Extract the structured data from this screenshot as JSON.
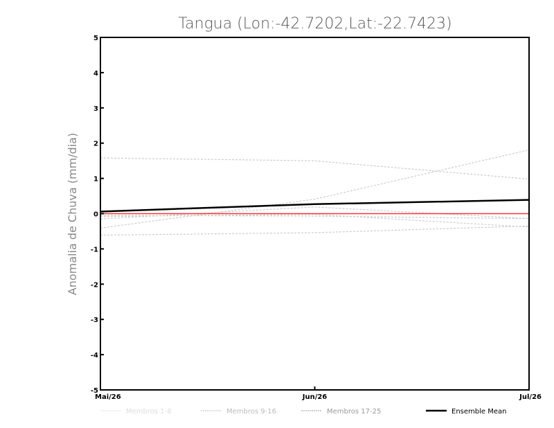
{
  "chart_data": {
    "type": "line",
    "title": "Tangua (Lon:-42.7202,Lat:-22.7423)",
    "xlabel": "",
    "ylabel": "Anomalia de Chuva (mm/dia)",
    "categories": [
      "Mai/26",
      "Jun/26",
      "Jul/26"
    ],
    "ylim": [
      -5,
      5
    ],
    "yticks": [
      "5",
      "4",
      "3",
      "2",
      "1",
      "0",
      "-1",
      "-2",
      "-3",
      "-4",
      "-5"
    ],
    "grid": false,
    "legend_position": "bottom",
    "legend": [
      {
        "label": "Membros 1-8",
        "color": "#dddddd"
      },
      {
        "label": "Membros 9-16",
        "color": "#bbbbbb"
      },
      {
        "label": "Membros 17-25",
        "color": "#999999"
      },
      {
        "label": "Ensemble Mean",
        "color": "#000000"
      }
    ],
    "members": [
      [
        1.58,
        1.5,
        0.98
      ],
      [
        -0.41,
        0.41,
        1.81
      ],
      [
        -0.15,
        0.19,
        -0.14
      ],
      [
        -0.08,
        -0.02,
        -0.38
      ],
      [
        -0.61,
        -0.54,
        -0.35
      ],
      [
        -0.05,
        -0.07,
        -0.14
      ]
    ],
    "ensemble_mean": [
      0.06,
      0.27,
      0.39
    ],
    "zero_line_color": "#ff3333"
  }
}
